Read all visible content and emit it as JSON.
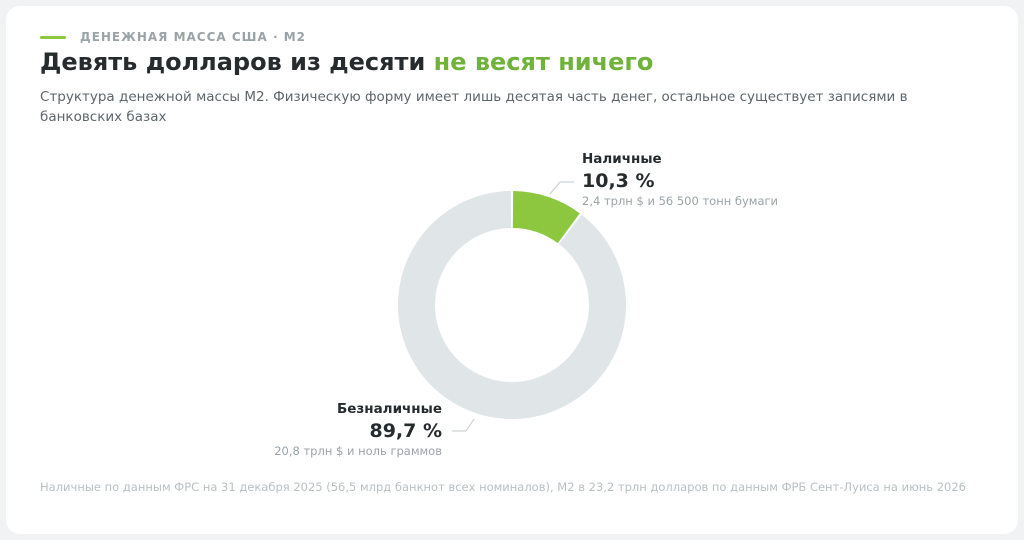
{
  "header": {
    "kicker": "ДЕНЕЖНАЯ МАССА США · М2",
    "title_main": "Девять долларов из десяти",
    "title_accent": "не весят ничего",
    "subtitle": "Структура денежной массы М2. Физическую форму имеет лишь десятая часть денег, остальное существует записями в банковских базах"
  },
  "chart_data": {
    "type": "pie",
    "variant": "donut",
    "slices": [
      {
        "name": "Наличные",
        "value": 10.3,
        "label": "10,3 %",
        "note": "2,4 трлн $ и 56 500 тонн бумаги",
        "color": "#8dc63f"
      },
      {
        "name": "Безналичные",
        "value": 89.7,
        "label": "89,7 %",
        "note": "20,8 трлн $ и ноль граммов",
        "color": "#e0e5e8"
      }
    ]
  },
  "footnote": "Наличные по данным ФРС на 31 декабря 2025 (56,5 млрд банкнот всех номиналов), М2 в 23,2 трлн долларов по данным ФРБ Сент-Луиса на июнь 2026",
  "colors": {
    "accent": "#8dc63f",
    "accent_text": "#6fb33a",
    "background": "#f0f2f3",
    "card": "#ffffff"
  }
}
